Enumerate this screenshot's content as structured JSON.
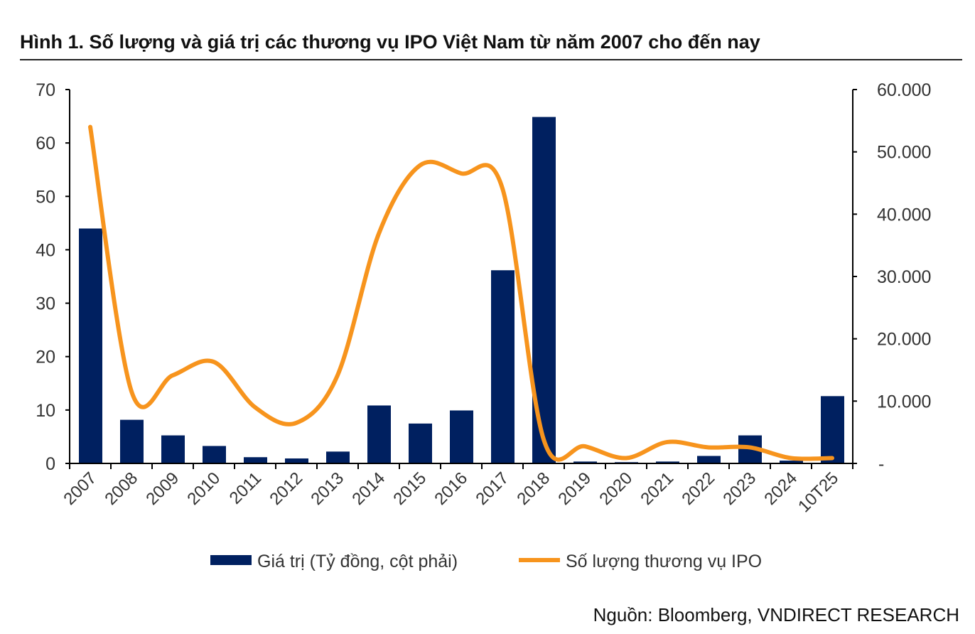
{
  "chart_data": {
    "type": "bar+line",
    "title": "Hình 1. Số lượng và giá trị các thương vụ IPO Việt Nam từ năm 2007 cho đến nay",
    "source": "Nguồn: Bloomberg, VNDIRECT RESEARCH",
    "categories": [
      "2007",
      "2008",
      "2009",
      "2010",
      "2011",
      "2012",
      "2013",
      "2014",
      "2015",
      "2016",
      "2017",
      "2018",
      "2019",
      "2020",
      "2021",
      "2022",
      "2023",
      "2024",
      "10T25"
    ],
    "series": [
      {
        "name": "Giá trị (Tỷ đồng, cột phải)",
        "type": "bar",
        "axis": "right",
        "color": "#002060",
        "values": [
          37700,
          7000,
          4500,
          2800,
          1000,
          800,
          1900,
          9300,
          6400,
          8500,
          31000,
          55600,
          300,
          200,
          300,
          1200,
          4500,
          450,
          10800
        ]
      },
      {
        "name": "Số lượng thương vụ IPO",
        "type": "line",
        "axis": "left",
        "color": "#F7941D",
        "smooth": true,
        "values": [
          63,
          13.5,
          16.5,
          19,
          10.5,
          7.6,
          16.5,
          43,
          55.8,
          54.3,
          51.5,
          4.5,
          3.2,
          1,
          4,
          3,
          3,
          1,
          1
        ]
      }
    ],
    "left_axis": {
      "ylim": [
        0,
        70
      ],
      "ticks": [
        "0",
        "10",
        "20",
        "30",
        "40",
        "50",
        "60",
        "70"
      ]
    },
    "right_axis": {
      "ylim": [
        0,
        60000
      ],
      "ticks": [
        "-",
        "10.000",
        "20.000",
        "30.000",
        "40.000",
        "50.000",
        "60.000"
      ]
    },
    "grid": false,
    "legend": "bottom"
  }
}
